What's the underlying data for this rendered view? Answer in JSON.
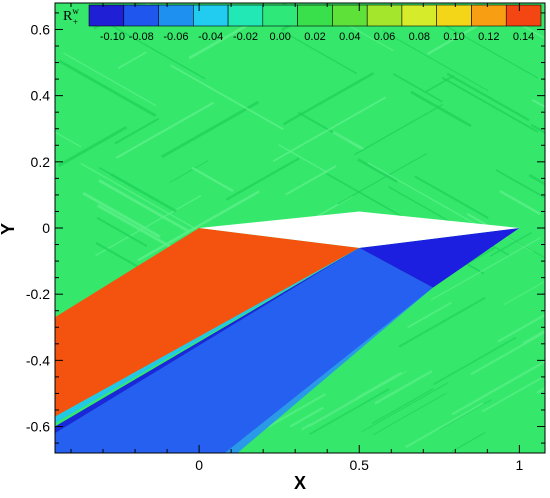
{
  "chart_data": {
    "type": "contour",
    "xlabel": "X",
    "ylabel": "Y",
    "xlim": [
      -0.45,
      1.08
    ],
    "ylim": [
      -0.68,
      0.68
    ],
    "xticks": [
      {
        "value": 0,
        "label": "0"
      },
      {
        "value": 0.5,
        "label": "0.5"
      },
      {
        "value": 1,
        "label": "1"
      }
    ],
    "yticks": [
      {
        "value": 0.6,
        "label": "0.6"
      },
      {
        "value": 0.4,
        "label": "0.4"
      },
      {
        "value": 0.2,
        "label": "0.2"
      },
      {
        "value": 0,
        "label": "0"
      },
      {
        "value": -0.2,
        "label": "-0.2"
      },
      {
        "value": -0.4,
        "label": "-0.4"
      },
      {
        "value": -0.6,
        "label": "-0.6"
      }
    ],
    "legend": {
      "title": "R",
      "title_sup": "w",
      "title_sub": "+",
      "placement": "top",
      "levels": [
        {
          "value": -0.1,
          "label": "-0.10",
          "color": "#1f1fd6"
        },
        {
          "value": -0.08,
          "label": "-0.08",
          "color": "#1f57ee"
        },
        {
          "value": -0.06,
          "label": "-0.06",
          "color": "#1e90f0"
        },
        {
          "value": -0.04,
          "label": "-0.04",
          "color": "#22ccf0"
        },
        {
          "value": -0.02,
          "label": "-0.02",
          "color": "#22e8b6"
        },
        {
          "value": 0.0,
          "label": "0.00",
          "color": "#2ee87a"
        },
        {
          "value": 0.02,
          "label": "0.02",
          "color": "#3ae04c"
        },
        {
          "value": 0.04,
          "label": "0.04",
          "color": "#5ee23a"
        },
        {
          "value": 0.06,
          "label": "0.06",
          "color": "#a4e62c"
        },
        {
          "value": 0.08,
          "label": "0.08",
          "color": "#d6ec2a"
        },
        {
          "value": 0.1,
          "label": "0.10",
          "color": "#f2d617"
        },
        {
          "value": 0.12,
          "label": "0.12",
          "color": "#f79e13"
        },
        {
          "value": 0.14,
          "label": "0.14",
          "color": "#f34612"
        }
      ]
    },
    "airfoil": {
      "leading_edge": [
        0,
        0
      ],
      "upper_ridge": [
        0.5,
        0.05
      ],
      "lower_ridge": [
        0.5,
        -0.06
      ],
      "trailing_edge": [
        1,
        0
      ]
    },
    "regions": [
      {
        "name": "background",
        "level": 0.01,
        "color": "#35e86c"
      },
      {
        "name": "expansion-fan",
        "level": 0.13,
        "color": "#f4520f",
        "points": [
          [
            0,
            0
          ],
          [
            0.5,
            -0.06
          ],
          [
            -0.45,
            -0.57
          ],
          [
            -0.45,
            -0.27
          ]
        ]
      },
      {
        "name": "compression-band",
        "level": -0.08,
        "color": "#2560f0",
        "points": [
          [
            0.5,
            -0.06
          ],
          [
            0.73,
            -0.18
          ],
          [
            0.1,
            -0.68
          ],
          [
            -0.45,
            -0.68
          ],
          [
            -0.45,
            -0.6
          ]
        ]
      },
      {
        "name": "aft-lower-region",
        "level": -0.1,
        "color": "#1c1ee0",
        "points": [
          [
            0.5,
            -0.06
          ],
          [
            1,
            0
          ],
          [
            0.73,
            -0.18
          ]
        ]
      },
      {
        "name": "thin-band-upper",
        "level": -0.1,
        "color": "#1b28d8",
        "points": [
          [
            -0.45,
            -0.6
          ],
          [
            0.5,
            -0.06
          ],
          [
            -0.45,
            -0.62
          ]
        ]
      },
      {
        "name": "thin-band-lower",
        "level": -0.04,
        "color": "#22c8e6",
        "points": [
          [
            -0.45,
            -0.57
          ],
          [
            0.5,
            -0.06
          ],
          [
            -0.45,
            -0.59
          ]
        ]
      },
      {
        "name": "wake-band",
        "level": -0.06,
        "color": "#2a9ae8",
        "points": [
          [
            0.73,
            -0.18
          ],
          [
            0.12,
            -0.68
          ],
          [
            0.08,
            -0.68
          ]
        ]
      }
    ],
    "grid": false
  },
  "colors": {
    "background": "#35e86c",
    "frame": "#000000",
    "airfoil_fill": "#ffffff",
    "texture_light": "#5cf088",
    "texture_dark": "#21d45a"
  }
}
